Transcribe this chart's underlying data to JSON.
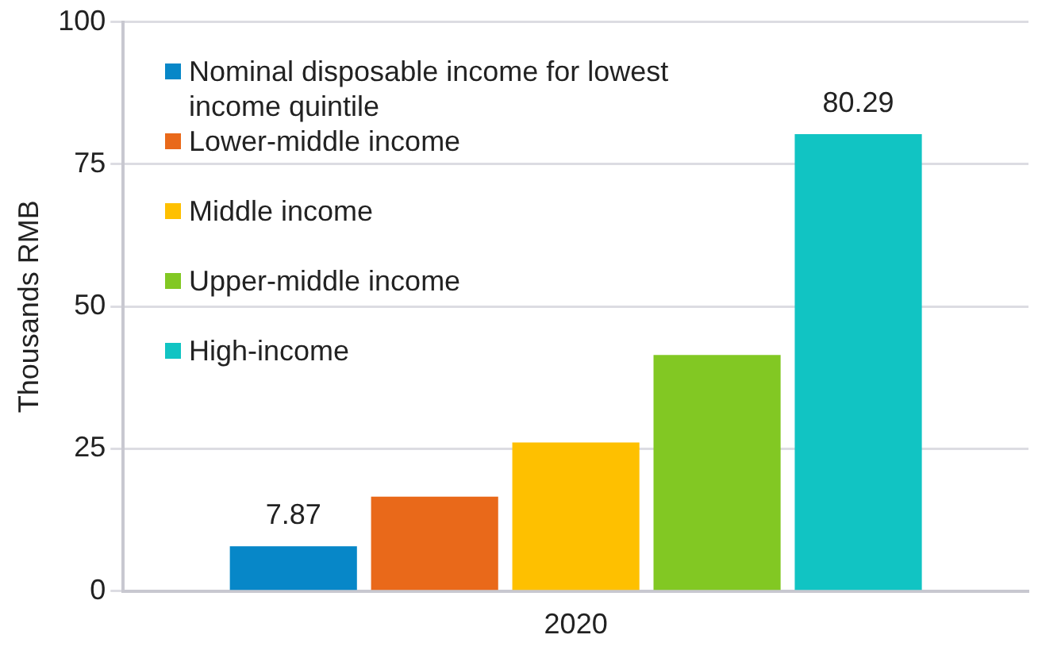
{
  "chart_data": {
    "type": "bar",
    "categories": [
      "2020"
    ],
    "ylabel": "Thousands RMB",
    "ylim": [
      0,
      100
    ],
    "yticks": [
      0,
      25,
      50,
      75,
      100
    ],
    "grid": "y",
    "legend": "top left",
    "series": [
      {
        "name": "Nominal disposable income for lowest income quintile",
        "color": "#0787c8",
        "values": [
          7.87
        ],
        "value_labels": [
          "7.87"
        ]
      },
      {
        "name": "Lower-middle income",
        "color": "#e9691a",
        "values": [
          16.6
        ],
        "value_labels": [
          null
        ]
      },
      {
        "name": "Middle income",
        "color": "#fec000",
        "values": [
          26.1
        ],
        "value_labels": [
          null
        ]
      },
      {
        "name": "Upper-middle income",
        "color": "#82c823",
        "values": [
          41.5
        ],
        "value_labels": [
          null
        ]
      },
      {
        "name": "High-income",
        "color": "#11c4c3",
        "values": [
          80.29
        ],
        "value_labels": [
          "80.29"
        ]
      }
    ]
  }
}
